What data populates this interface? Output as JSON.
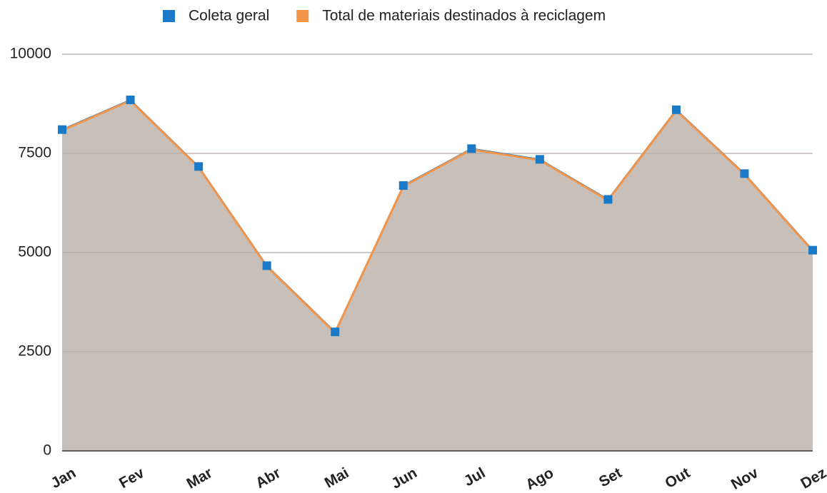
{
  "chart_data": {
    "type": "area",
    "categories": [
      "Jan",
      "Fev",
      "Mar",
      "Abr",
      "Mai",
      "Jun",
      "Jul",
      "Ago",
      "Set",
      "Out",
      "Nov",
      "Dez"
    ],
    "series": [
      {
        "name": "Coleta geral",
        "color": "#1a7ac8",
        "values": [
          8100,
          8850,
          7170,
          4670,
          3000,
          6690,
          7620,
          7350,
          6340,
          8600,
          6990,
          5060
        ]
      },
      {
        "name": "Total de materiais destinados à reciclagem",
        "color": "#f39449",
        "area_color": "#c8bfb8",
        "values": [
          8080,
          8830,
          7150,
          4650,
          2980,
          6670,
          7600,
          7330,
          6320,
          8580,
          6970,
          5040
        ]
      }
    ],
    "ylim": [
      0,
      10000
    ],
    "yticks": [
      0,
      2500,
      5000,
      7500,
      10000
    ],
    "grid": true,
    "legend": "top"
  }
}
